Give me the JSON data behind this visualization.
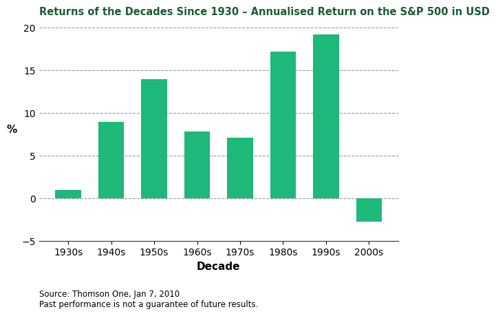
{
  "title": "Returns of the Decades Since 1930 – Annualised Return on the S&P 500 in USD",
  "categories": [
    "1930s",
    "1940s",
    "1950s",
    "1960s",
    "1970s",
    "1980s",
    "1990s",
    "2000s"
  ],
  "values": [
    1.0,
    9.0,
    14.0,
    7.8,
    7.1,
    17.2,
    19.2,
    -2.7
  ],
  "bar_color": "#1DB87A",
  "xlabel": "Decade",
  "ylabel": "%",
  "ylim": [
    -5,
    20
  ],
  "yticks": [
    -5,
    0,
    5,
    10,
    15,
    20
  ],
  "grid_color": "#999999",
  "title_color": "#1a5c38",
  "source_text": "Source: Thomson One, Jan 7, 2010\nPast performance is not a guarantee of future results.",
  "title_fontsize": 10.5,
  "axis_label_fontsize": 11,
  "tick_fontsize": 10,
  "source_fontsize": 8.5
}
